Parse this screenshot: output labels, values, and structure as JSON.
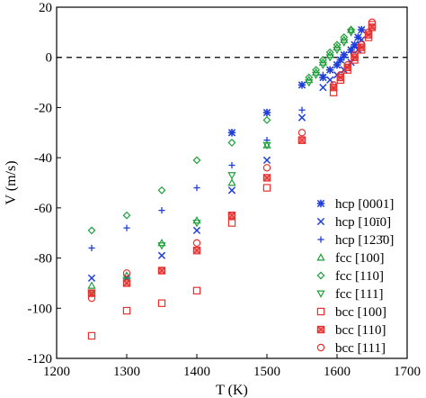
{
  "chart_data": {
    "type": "scatter",
    "xlabel": "T (K)",
    "ylabel": "V (m/s)",
    "xlim": [
      1200,
      1700
    ],
    "ylim": [
      -120,
      20
    ],
    "xticks": [
      "1200",
      "1300",
      "1400",
      "1500",
      "1600",
      "1700"
    ],
    "yticks": [
      "20",
      "0",
      "-20",
      "-40",
      "-60",
      "-80",
      "-100",
      "-120"
    ],
    "reference_line": {
      "y": 0,
      "style": "dashed"
    },
    "legend_position": "right",
    "series": [
      {
        "name": "hcp [0001]",
        "marker": "asterisk",
        "color": "#1f3fd6",
        "points": [
          [
            1450,
            -30
          ],
          [
            1500,
            -22
          ],
          [
            1550,
            -11
          ],
          [
            1580,
            -8
          ],
          [
            1590,
            -5
          ],
          [
            1600,
            -3
          ],
          [
            1605,
            -1
          ],
          [
            1610,
            1
          ],
          [
            1620,
            3
          ],
          [
            1625,
            5
          ],
          [
            1630,
            8
          ],
          [
            1635,
            11
          ]
        ]
      },
      {
        "name": "hcp [10ī0]",
        "marker": "x",
        "color": "#1f3fd6",
        "points": [
          [
            1250,
            -88
          ],
          [
            1300,
            -88
          ],
          [
            1350,
            -79
          ],
          [
            1400,
            -69
          ],
          [
            1450,
            -53
          ],
          [
            1500,
            -41
          ],
          [
            1550,
            -24
          ],
          [
            1580,
            -12
          ],
          [
            1590,
            -9
          ],
          [
            1600,
            -7
          ],
          [
            1610,
            -5
          ],
          [
            1620,
            -2
          ],
          [
            1630,
            3
          ],
          [
            1635,
            7
          ]
        ]
      },
      {
        "name": "hcp [123̄0]",
        "marker": "plus",
        "color": "#1f3fd6",
        "points": [
          [
            1250,
            -76
          ],
          [
            1300,
            -68
          ],
          [
            1350,
            -61
          ],
          [
            1400,
            -52
          ],
          [
            1450,
            -43
          ],
          [
            1500,
            -33
          ],
          [
            1550,
            -21
          ],
          [
            1580,
            -7
          ],
          [
            1590,
            -5
          ],
          [
            1600,
            -3
          ],
          [
            1610,
            0
          ],
          [
            1620,
            2
          ],
          [
            1630,
            5
          ]
        ]
      },
      {
        "name": "fcc [100]",
        "marker": "triangle-up",
        "color": "#1f9e3a",
        "points": [
          [
            1250,
            -91
          ],
          [
            1300,
            -87
          ],
          [
            1350,
            -74
          ],
          [
            1400,
            -65
          ],
          [
            1450,
            -50
          ],
          [
            1500,
            -35
          ],
          [
            1560,
            -9
          ],
          [
            1570,
            -6
          ],
          [
            1580,
            -2
          ],
          [
            1590,
            1
          ],
          [
            1600,
            4
          ],
          [
            1610,
            7
          ],
          [
            1620,
            11
          ]
        ]
      },
      {
        "name": "fcc [110]",
        "marker": "diamond",
        "color": "#1f9e3a",
        "points": [
          [
            1250,
            -69
          ],
          [
            1300,
            -63
          ],
          [
            1350,
            -53
          ],
          [
            1400,
            -41
          ],
          [
            1450,
            -34
          ],
          [
            1500,
            -25
          ],
          [
            1560,
            -8
          ],
          [
            1570,
            -5
          ],
          [
            1580,
            -1
          ],
          [
            1590,
            2
          ],
          [
            1600,
            5
          ],
          [
            1610,
            8
          ],
          [
            1620,
            11
          ]
        ]
      },
      {
        "name": "fcc [111]",
        "marker": "triangle-down",
        "color": "#1f9e3a",
        "points": [
          [
            1250,
            -94
          ],
          [
            1300,
            -89
          ],
          [
            1350,
            -75
          ],
          [
            1400,
            -66
          ],
          [
            1450,
            -47
          ],
          [
            1500,
            -35
          ],
          [
            1560,
            -10
          ],
          [
            1570,
            -7
          ],
          [
            1580,
            -3
          ],
          [
            1590,
            0
          ],
          [
            1600,
            3
          ],
          [
            1610,
            6
          ],
          [
            1620,
            10
          ]
        ]
      },
      {
        "name": "bcc [100]",
        "marker": "square-open",
        "color": "#e8312f",
        "points": [
          [
            1250,
            -111
          ],
          [
            1300,
            -101
          ],
          [
            1350,
            -98
          ],
          [
            1400,
            -93
          ],
          [
            1450,
            -66
          ],
          [
            1500,
            -52
          ],
          [
            1550,
            -33
          ],
          [
            1595,
            -14
          ],
          [
            1605,
            -9
          ],
          [
            1615,
            -5
          ],
          [
            1625,
            -1
          ],
          [
            1635,
            3
          ],
          [
            1645,
            8
          ],
          [
            1650,
            13
          ]
        ]
      },
      {
        "name": "bcc [110]",
        "marker": "square-filled",
        "color": "#e8312f",
        "points": [
          [
            1250,
            -94
          ],
          [
            1300,
            -90
          ],
          [
            1350,
            -85
          ],
          [
            1400,
            -77
          ],
          [
            1450,
            -63
          ],
          [
            1500,
            -48
          ],
          [
            1550,
            -33
          ],
          [
            1595,
            -12
          ],
          [
            1605,
            -8
          ],
          [
            1615,
            -4
          ],
          [
            1625,
            0
          ],
          [
            1635,
            4
          ],
          [
            1645,
            9
          ],
          [
            1650,
            12
          ]
        ]
      },
      {
        "name": "bcc [111]",
        "marker": "circle",
        "color": "#e8312f",
        "points": [
          [
            1250,
            -96
          ],
          [
            1300,
            -86
          ],
          [
            1350,
            -85
          ],
          [
            1400,
            -74
          ],
          [
            1450,
            -63
          ],
          [
            1500,
            -44
          ],
          [
            1550,
            -30
          ],
          [
            1595,
            -11
          ],
          [
            1605,
            -7
          ],
          [
            1615,
            -3
          ],
          [
            1625,
            1
          ],
          [
            1635,
            5
          ],
          [
            1645,
            10
          ],
          [
            1650,
            14
          ]
        ]
      }
    ]
  }
}
